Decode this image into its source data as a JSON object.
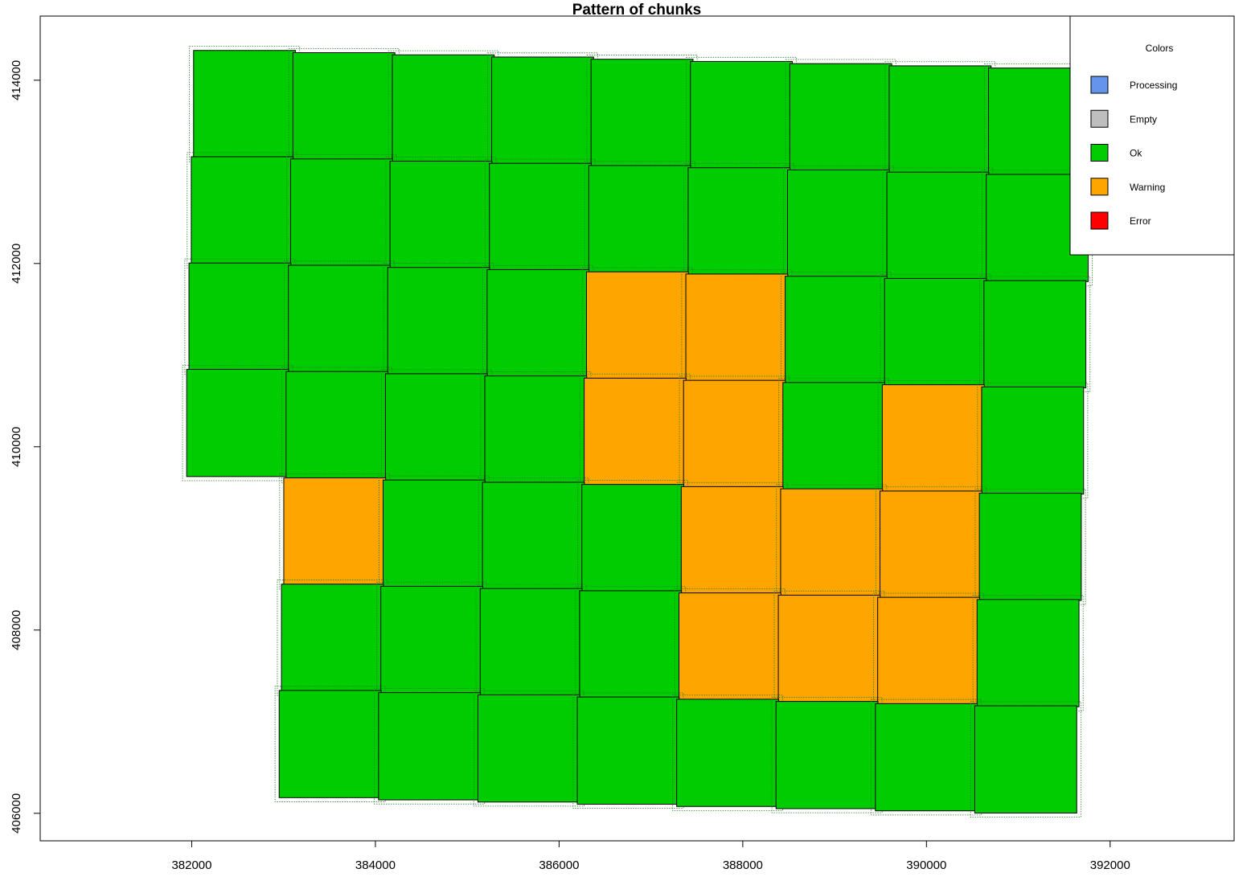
{
  "chart_data": {
    "type": "heatmap",
    "title": "Pattern of chunks",
    "xlabel": "",
    "ylabel": "",
    "xlim": [
      380350,
      393350
    ],
    "ylim": [
      405700,
      414700
    ],
    "x_ticks": [
      382000,
      384000,
      386000,
      388000,
      390000,
      392000
    ],
    "y_ticks": [
      406000,
      408000,
      410000,
      412000,
      414000
    ],
    "x_tick_labels": [
      "382000",
      "384000",
      "386000",
      "388000",
      "390000",
      "392000"
    ],
    "y_tick_labels": [
      "406000",
      "408000",
      "410000",
      "412000",
      "414000"
    ],
    "grid": false,
    "legend": {
      "title": "Colors",
      "position": "top-right",
      "items": [
        {
          "label": "Processing",
          "color": "#6495ED"
        },
        {
          "label": "Empty",
          "color": "#BEBEBE"
        },
        {
          "label": "Ok",
          "color": "#00CD00"
        },
        {
          "label": "Warning",
          "color": "#FFA500"
        },
        {
          "label": "Error",
          "color": "#FF0000"
        }
      ]
    },
    "status_colors": {
      "ok": "#00CD00",
      "warning": "#FFA500"
    },
    "grid_layout": {
      "rows_top_to_bottom": 7,
      "columns_left_to_right": 9,
      "origin": [
        382020,
        414325
      ],
      "column_step": [
        1082,
        -24
      ],
      "row_step": [
        -25,
        -1160
      ],
      "chunk_size": [
        1110,
        1170
      ]
    },
    "chunks": [
      [
        "ok",
        "ok",
        "ok",
        "ok",
        "ok",
        "ok",
        "ok",
        "ok",
        "ok"
      ],
      [
        "ok",
        "ok",
        "ok",
        "ok",
        "ok",
        "ok",
        "ok",
        "ok",
        "ok"
      ],
      [
        "ok",
        "ok",
        "ok",
        "ok",
        "warning",
        "warning",
        "ok",
        "ok",
        "ok"
      ],
      [
        "ok",
        "ok",
        "ok",
        "ok",
        "warning",
        "warning",
        "ok",
        "warning",
        "ok"
      ],
      [
        null,
        "warning",
        "ok",
        "ok",
        "ok",
        "warning",
        "warning",
        "warning",
        "ok"
      ],
      [
        null,
        "ok",
        "ok",
        "ok",
        "ok",
        "warning",
        "warning",
        "warning",
        "ok"
      ],
      [
        null,
        "ok",
        "ok",
        "ok",
        "ok",
        "ok",
        "ok",
        "ok",
        "ok"
      ]
    ]
  }
}
